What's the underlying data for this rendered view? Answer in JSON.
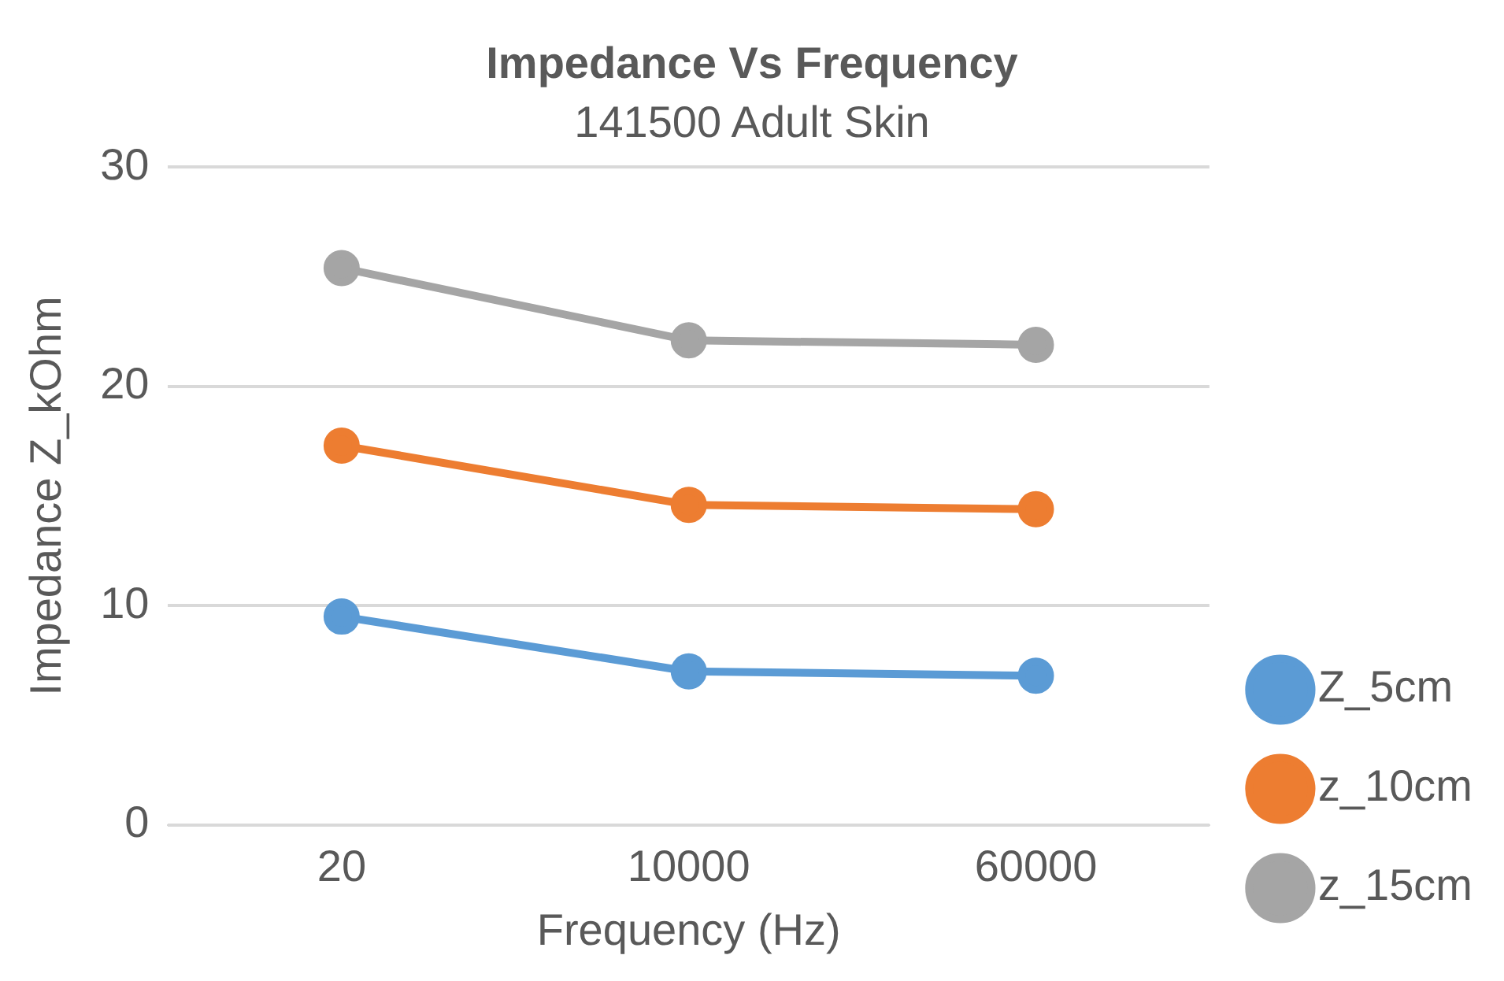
{
  "chart_data": {
    "type": "line",
    "title": "Impedance Vs Frequency",
    "subtitle": "141500 Adult Skin",
    "xlabel": "Frequency (Hz)",
    "ylabel": "Impedance Z_kOhm",
    "categories": [
      "20",
      "10000",
      "60000"
    ],
    "series": [
      {
        "name": "Z_5cm",
        "color": "#5b9bd5",
        "values": [
          9.5,
          7.0,
          6.8
        ]
      },
      {
        "name": "z_10cm",
        "color": "#ed7d31",
        "values": [
          17.3,
          14.6,
          14.4
        ]
      },
      {
        "name": "z_15cm",
        "color": "#a5a5a5",
        "values": [
          25.4,
          22.1,
          21.9
        ]
      }
    ],
    "ylim": [
      0,
      30
    ],
    "yticks": [
      0,
      10,
      20,
      30
    ],
    "grid": "y",
    "legend": "right",
    "marker": "circle",
    "line_style": "solid"
  }
}
